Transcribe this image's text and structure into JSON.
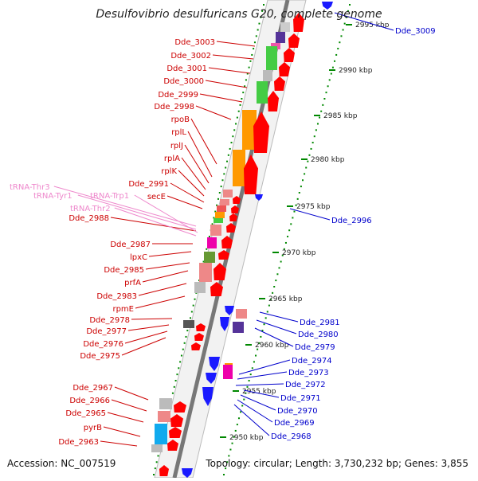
{
  "title": "Desulfovibrio desulfuricans G20, complete genome",
  "footer": {
    "accession": "Accession: NC_007519",
    "topology": "Topology: circular; Length: 3,730,232 bp; Genes: 3,855"
  },
  "colors": {
    "forward_label": "#cc0000",
    "reverse_label": "#0000cc",
    "trna_label": "#ee88cc",
    "forward_arrow": "#ff0000",
    "reverse_arrow": "#1a1aff",
    "tick": "#008800",
    "backbone": "#777777"
  },
  "ruler": [
    {
      "label": "2995 kbp"
    },
    {
      "label": "2990 kbp"
    },
    {
      "label": "2985 kbp"
    },
    {
      "label": "2980 kbp"
    },
    {
      "label": "2975 kbp"
    },
    {
      "label": "2970 kbp"
    },
    {
      "label": "2965 kbp"
    },
    {
      "label": "2960 kbp"
    },
    {
      "label": "2955 kbp"
    },
    {
      "label": "2950 kbp"
    }
  ],
  "forward_genes": [
    {
      "label": "Dde_3003"
    },
    {
      "label": "Dde_3002"
    },
    {
      "label": "Dde_3001"
    },
    {
      "label": "Dde_3000"
    },
    {
      "label": "Dde_2999"
    },
    {
      "label": "Dde_2998"
    },
    {
      "label": "rpoB"
    },
    {
      "label": "rplL"
    },
    {
      "label": "rplJ"
    },
    {
      "label": "rplA"
    },
    {
      "label": "rplK"
    },
    {
      "label": "Dde_2991"
    },
    {
      "label": "secE"
    },
    {
      "label": "Dde_2988"
    },
    {
      "label": "Dde_2987"
    },
    {
      "label": "lpxC"
    },
    {
      "label": "Dde_2985"
    },
    {
      "label": "prfA"
    },
    {
      "label": "Dde_2983"
    },
    {
      "label": "rpmE"
    },
    {
      "label": "Dde_2978"
    },
    {
      "label": "Dde_2977"
    },
    {
      "label": "Dde_2976"
    },
    {
      "label": "Dde_2975"
    },
    {
      "label": "Dde_2967"
    },
    {
      "label": "Dde_2966"
    },
    {
      "label": "Dde_2965"
    },
    {
      "label": "pyrB"
    },
    {
      "label": "Dde_2963"
    }
  ],
  "trna_genes": [
    {
      "label": "tRNA-Thr3"
    },
    {
      "label": "tRNA-Tyr1"
    },
    {
      "label": "tRNA-Trp1"
    },
    {
      "label": "tRNA-Thr2"
    }
  ],
  "reverse_genes": [
    {
      "label": "Dde_3009"
    },
    {
      "label": "Dde_2996"
    },
    {
      "label": "Dde_2981"
    },
    {
      "label": "Dde_2980"
    },
    {
      "label": "Dde_2979"
    },
    {
      "label": "Dde_2974"
    },
    {
      "label": "Dde_2973"
    },
    {
      "label": "Dde_2972"
    },
    {
      "label": "Dde_2971"
    },
    {
      "label": "Dde_2970"
    },
    {
      "label": "Dde_2969"
    },
    {
      "label": "Dde_2968"
    }
  ]
}
